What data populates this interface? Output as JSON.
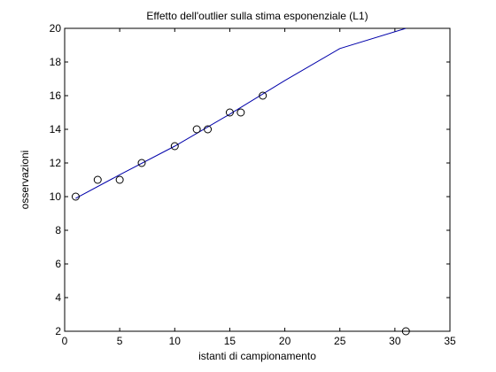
{
  "chart_data": {
    "type": "scatter",
    "title": "Effetto dell'outlier sulla stima esponenziale (L1)",
    "xlabel": "istanti di campionamento",
    "ylabel": "osservazioni",
    "xlim": [
      0,
      35
    ],
    "ylim": [
      2,
      20
    ],
    "xticks": [
      0,
      5,
      10,
      15,
      20,
      25,
      30,
      35
    ],
    "yticks": [
      2,
      4,
      6,
      8,
      10,
      12,
      14,
      16,
      18,
      20
    ],
    "grid": false,
    "legend": "none",
    "series": [
      {
        "type": "scatter",
        "marker": "circle-open",
        "color": "#000000",
        "points": [
          {
            "x": 1,
            "y": 10
          },
          {
            "x": 3,
            "y": 11
          },
          {
            "x": 5,
            "y": 11
          },
          {
            "x": 7,
            "y": 12
          },
          {
            "x": 10,
            "y": 13
          },
          {
            "x": 12,
            "y": 14
          },
          {
            "x": 13,
            "y": 14
          },
          {
            "x": 15,
            "y": 15
          },
          {
            "x": 16,
            "y": 15
          },
          {
            "x": 18,
            "y": 16
          },
          {
            "x": 31,
            "y": 2
          }
        ]
      },
      {
        "type": "line",
        "color": "#0000aa",
        "points": [
          {
            "x": 1,
            "y": 9.9
          },
          {
            "x": 5,
            "y": 11.3
          },
          {
            "x": 10,
            "y": 13.0
          },
          {
            "x": 15,
            "y": 14.9
          },
          {
            "x": 20,
            "y": 16.9
          },
          {
            "x": 25,
            "y": 18.8
          },
          {
            "x": 31,
            "y": 20.0
          }
        ]
      }
    ]
  }
}
